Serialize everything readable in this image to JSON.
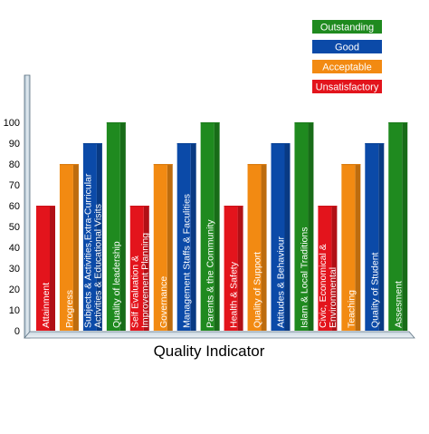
{
  "chart_data": {
    "type": "bar",
    "xlabel": "Quality Indicator",
    "ylabel": "",
    "ylim": [
      0,
      100
    ],
    "yticks": [
      0,
      10,
      20,
      30,
      40,
      50,
      60,
      70,
      80,
      90,
      100
    ],
    "grid": false,
    "legend_position": "top-right",
    "legend": [
      {
        "label": "Outstanding",
        "value": 100,
        "color": "#1f8a1f"
      },
      {
        "label": "Good",
        "value": 90,
        "color": "#0b4aa8"
      },
      {
        "label": "Acceptable",
        "value": 80,
        "color": "#f28a12"
      },
      {
        "label": "Unsatisfactory",
        "value": 60,
        "color": "#e3141c"
      }
    ],
    "bars": [
      {
        "lines": [
          "Attainment"
        ],
        "value": 60,
        "color": "#e3141c"
      },
      {
        "lines": [
          "Progress"
        ],
        "value": 80,
        "color": "#f28a12"
      },
      {
        "lines": [
          "Subjects & Activities,Extra-Curricular",
          "Activities & Educational Visits"
        ],
        "value": 90,
        "color": "#0b4aa8"
      },
      {
        "lines": [
          "Quality of leadership"
        ],
        "value": 100,
        "color": "#1f8a1f"
      },
      {
        "lines": [
          "Self Evaluation &",
          "Improvement Planning"
        ],
        "value": 60,
        "color": "#e3141c"
      },
      {
        "lines": [
          "Governance"
        ],
        "value": 80,
        "color": "#f28a12"
      },
      {
        "lines": [
          "Management Staffs & Faculities"
        ],
        "value": 90,
        "color": "#0b4aa8"
      },
      {
        "lines": [
          "Parents & the Community"
        ],
        "value": 100,
        "color": "#1f8a1f"
      },
      {
        "lines": [
          "Health & Safety"
        ],
        "value": 60,
        "color": "#e3141c"
      },
      {
        "lines": [
          "Quality of Support"
        ],
        "value": 80,
        "color": "#f28a12"
      },
      {
        "lines": [
          "Attitudes & Behaviour"
        ],
        "value": 90,
        "color": "#0b4aa8"
      },
      {
        "lines": [
          "Islam & Local Traditions"
        ],
        "value": 100,
        "color": "#1f8a1f"
      },
      {
        "lines": [
          "Civic, Economical &",
          "Environmental"
        ],
        "value": 60,
        "color": "#e3141c"
      },
      {
        "lines": [
          "Teaching"
        ],
        "value": 80,
        "color": "#f28a12"
      },
      {
        "lines": [
          "Quality of Student"
        ],
        "value": 90,
        "color": "#0b4aa8"
      },
      {
        "lines": [
          "Assesment"
        ],
        "value": 100,
        "color": "#1f8a1f"
      }
    ]
  }
}
